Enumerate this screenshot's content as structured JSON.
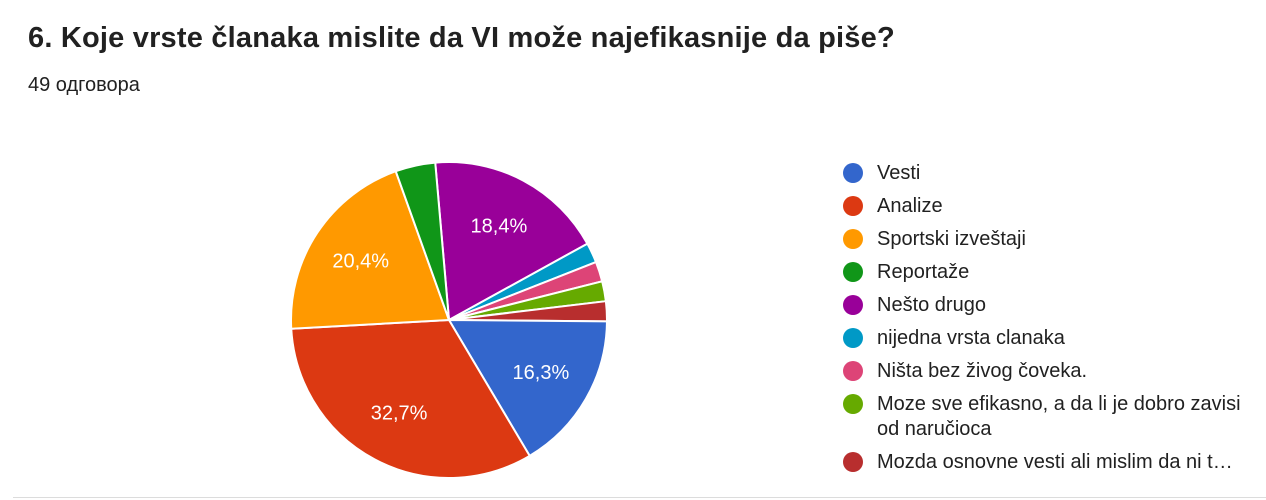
{
  "header": {
    "title": "6. Koje vrste članaka mislite da VI može najefikasnije da piše?",
    "responses_count": "49 одговора"
  },
  "chart_data": {
    "type": "pie",
    "title": "6. Koje vrste članaka mislite da VI može najefikasnije da piše?",
    "total_responses": 49,
    "legend_position": "right",
    "start_angle_deg": -5,
    "direction": "clockwise",
    "categories": [
      "Vesti",
      "Analize",
      "Sportski izveštaji",
      "Reportaže",
      "Nešto drugo",
      "nijedna vrsta clanaka",
      "Ništa bez živog čoveka.",
      "Moze sve efikasno, a da li je dobro zavisi od naručioca",
      "Mozda osnovne vesti ali mislim da ni t…"
    ],
    "counts": [
      8,
      16,
      10,
      2,
      9,
      1,
      1,
      1,
      1
    ],
    "values_pct": [
      16.3,
      32.7,
      20.4,
      4.1,
      18.4,
      2.0,
      2.0,
      2.0,
      2.0
    ],
    "slice_labels": [
      "16,3%",
      "32,7%",
      "20,4%",
      "",
      "18,4%",
      "",
      "",
      "",
      ""
    ],
    "colors": [
      "#3366cc",
      "#dc3912",
      "#ff9900",
      "#109618",
      "#990099",
      "#0099c6",
      "#dd4477",
      "#66aa00",
      "#b82e2e"
    ],
    "draw_order_clockwise_from_top": [
      4,
      5,
      6,
      7,
      8,
      0,
      1,
      2,
      3
    ]
  },
  "legend": {
    "items": [
      {
        "label": "Vesti",
        "color": "#3366cc"
      },
      {
        "label": "Analize",
        "color": "#dc3912"
      },
      {
        "label": "Sportski izveštaji",
        "color": "#ff9900"
      },
      {
        "label": "Reportaže",
        "color": "#109618"
      },
      {
        "label": "Nešto drugo",
        "color": "#990099"
      },
      {
        "label": "nijedna vrsta clanaka",
        "color": "#0099c6"
      },
      {
        "label": "Ništa bez živog čoveka.",
        "color": "#dd4477"
      },
      {
        "label": "Moze sve efikasno, a da li je dobro zavisi od naručioca",
        "color": "#66aa00"
      },
      {
        "label": "Mozda osnovne vesti ali mislim da ni t…",
        "color": "#b82e2e"
      }
    ]
  },
  "colors": {
    "background": "#ffffff",
    "text_primary": "#212121",
    "slice_label_text": "#ffffff",
    "slice_stroke": "#ffffff",
    "divider": "#dcdcdc"
  }
}
